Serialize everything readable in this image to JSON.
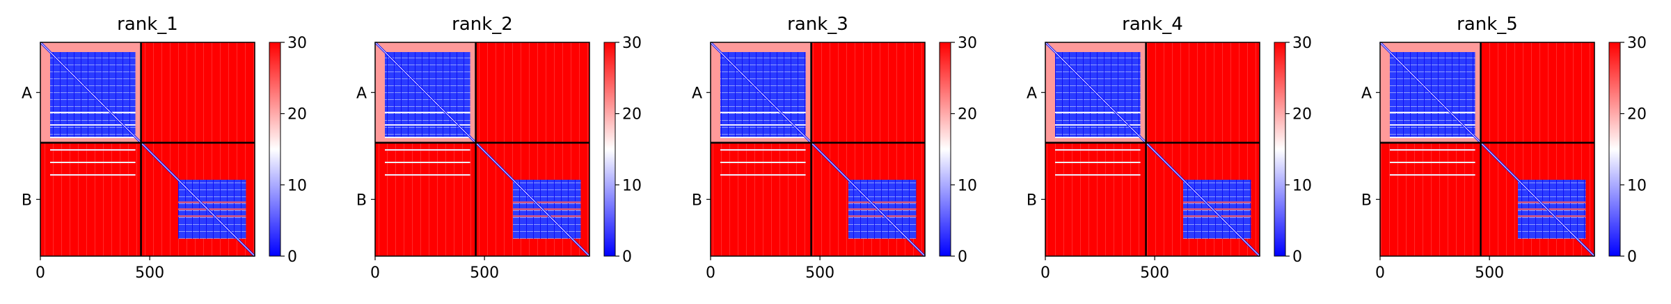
{
  "chart_data": [
    {
      "type": "heatmap",
      "title": "rank_1",
      "chains": [
        {
          "label": "A",
          "start": 0,
          "end": 460
        },
        {
          "label": "B",
          "start": 460,
          "end": 980
        }
      ],
      "boundary": 460,
      "xlim": [
        0,
        980
      ],
      "ylim": [
        0,
        980
      ],
      "xticks": [
        {
          "value": 0,
          "label": "0"
        },
        {
          "value": 500,
          "label": "500"
        }
      ],
      "colorbar": {
        "min": 0,
        "max": 30,
        "ticks": [
          {
            "value": 0,
            "label": "0"
          },
          {
            "value": 10,
            "label": "10"
          },
          {
            "value": 20,
            "label": "20"
          },
          {
            "value": 30,
            "label": "30"
          }
        ],
        "colors": [
          "#0000ff",
          "#ffffff",
          "#ff0000"
        ]
      },
      "blocks": {
        "AA": "low",
        "AB": "high",
        "BA": "high",
        "BB": "low"
      }
    },
    {
      "type": "heatmap",
      "title": "rank_2",
      "chains": [
        {
          "label": "A",
          "start": 0,
          "end": 460
        },
        {
          "label": "B",
          "start": 460,
          "end": 980
        }
      ],
      "boundary": 460,
      "xlim": [
        0,
        980
      ],
      "ylim": [
        0,
        980
      ],
      "xticks": [
        {
          "value": 0,
          "label": "0"
        },
        {
          "value": 500,
          "label": "500"
        }
      ],
      "colorbar": {
        "min": 0,
        "max": 30,
        "ticks": [
          {
            "value": 0,
            "label": "0"
          },
          {
            "value": 10,
            "label": "10"
          },
          {
            "value": 20,
            "label": "20"
          },
          {
            "value": 30,
            "label": "30"
          }
        ],
        "colors": [
          "#0000ff",
          "#ffffff",
          "#ff0000"
        ]
      },
      "blocks": {
        "AA": "low",
        "AB": "high",
        "BA": "high",
        "BB": "low"
      }
    },
    {
      "type": "heatmap",
      "title": "rank_3",
      "chains": [
        {
          "label": "A",
          "start": 0,
          "end": 460
        },
        {
          "label": "B",
          "start": 460,
          "end": 980
        }
      ],
      "boundary": 460,
      "xlim": [
        0,
        980
      ],
      "ylim": [
        0,
        980
      ],
      "xticks": [
        {
          "value": 0,
          "label": "0"
        },
        {
          "value": 500,
          "label": "500"
        }
      ],
      "colorbar": {
        "min": 0,
        "max": 30,
        "ticks": [
          {
            "value": 0,
            "label": "0"
          },
          {
            "value": 10,
            "label": "10"
          },
          {
            "value": 20,
            "label": "20"
          },
          {
            "value": 30,
            "label": "30"
          }
        ],
        "colors": [
          "#0000ff",
          "#ffffff",
          "#ff0000"
        ]
      },
      "blocks": {
        "AA": "low",
        "AB": "high",
        "BA": "high",
        "BB": "low"
      }
    },
    {
      "type": "heatmap",
      "title": "rank_4",
      "chains": [
        {
          "label": "A",
          "start": 0,
          "end": 460
        },
        {
          "label": "B",
          "start": 460,
          "end": 980
        }
      ],
      "boundary": 460,
      "xlim": [
        0,
        980
      ],
      "ylim": [
        0,
        980
      ],
      "xticks": [
        {
          "value": 0,
          "label": "0"
        },
        {
          "value": 500,
          "label": "500"
        }
      ],
      "colorbar": {
        "min": 0,
        "max": 30,
        "ticks": [
          {
            "value": 0,
            "label": "0"
          },
          {
            "value": 10,
            "label": "10"
          },
          {
            "value": 20,
            "label": "20"
          },
          {
            "value": 30,
            "label": "30"
          }
        ],
        "colors": [
          "#0000ff",
          "#ffffff",
          "#ff0000"
        ]
      },
      "blocks": {
        "AA": "low",
        "AB": "high",
        "BA": "high",
        "BB": "low"
      }
    },
    {
      "type": "heatmap",
      "title": "rank_5",
      "chains": [
        {
          "label": "A",
          "start": 0,
          "end": 460
        },
        {
          "label": "B",
          "start": 460,
          "end": 980
        }
      ],
      "boundary": 460,
      "xlim": [
        0,
        980
      ],
      "ylim": [
        0,
        980
      ],
      "xticks": [
        {
          "value": 0,
          "label": "0"
        },
        {
          "value": 500,
          "label": "500"
        }
      ],
      "colorbar": {
        "min": 0,
        "max": 30,
        "ticks": [
          {
            "value": 0,
            "label": "0"
          },
          {
            "value": 10,
            "label": "10"
          },
          {
            "value": 20,
            "label": "20"
          },
          {
            "value": 30,
            "label": "30"
          }
        ],
        "colors": [
          "#0000ff",
          "#ffffff",
          "#ff0000"
        ]
      },
      "blocks": {
        "AA": "low",
        "AB": "high",
        "BA": "high",
        "BB": "low"
      }
    }
  ]
}
